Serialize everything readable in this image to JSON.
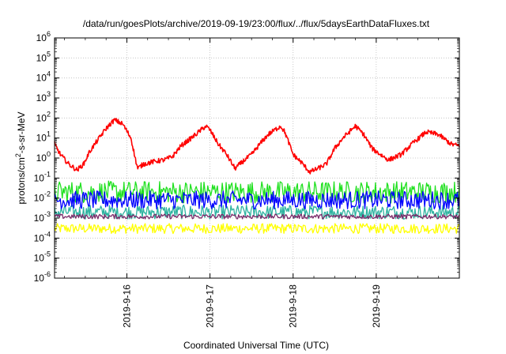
{
  "chart_data": {
    "type": "line",
    "title": "/data/run/goesPlots/archive/2019-09-19/23:00/flux/../flux/5daysEarthDataFluxes.txt",
    "xlabel": "Coordinated Universal Time (UTC)",
    "ylabel": {
      "base": "protons/cm",
      "sup": "2",
      "rest": "-s-sr-MeV"
    },
    "yscale": "log",
    "ylim_exp": [
      -6,
      6
    ],
    "y_tick_exponents": [
      -6,
      -5,
      -4,
      -3,
      -2,
      -1,
      0,
      1,
      2,
      3,
      4,
      5,
      6
    ],
    "y_tick_base": "10",
    "x_unit": "day",
    "xlim": [
      "2019-09-15T03:00",
      "2019-09-20T00:00"
    ],
    "x_ticks": [
      {
        "day_offset": 1,
        "label": "2019-9-16"
      },
      {
        "day_offset": 2,
        "label": "2019-9-17"
      },
      {
        "day_offset": 3,
        "label": "2019-9-18"
      },
      {
        "day_offset": 4,
        "label": "2019-9-19"
      }
    ],
    "x_start_day_offset": 0.13,
    "x_end_day_offset": 5.0,
    "grid": true,
    "legend": "none",
    "series": [
      {
        "color": "#ffff00",
        "description_keypoints": [
          [
            0.13,
            0.0003
          ],
          [
            5.0,
            0.0003
          ]
        ],
        "noise_log_amp": 0.25
      },
      {
        "color": "#2db3a0",
        "description_keypoints": [
          [
            0.13,
            0.002
          ],
          [
            5.0,
            0.002
          ]
        ],
        "noise_log_amp": 0.35
      },
      {
        "color": "#1fe01f",
        "description_keypoints": [
          [
            0.13,
            0.02
          ],
          [
            5.0,
            0.02
          ]
        ],
        "noise_log_amp": 0.55
      },
      {
        "color": "#0000ff",
        "description_keypoints": [
          [
            0.13,
            0.008
          ],
          [
            5.0,
            0.008
          ]
        ],
        "noise_log_amp": 0.45
      },
      {
        "color": "#7a2a6a",
        "description_keypoints": [
          [
            0.13,
            0.0012
          ],
          [
            5.0,
            0.0012
          ]
        ],
        "noise_log_amp": 0.12
      },
      {
        "color": "#ff0000",
        "description_keypoints": [
          [
            0.13,
            5
          ],
          [
            0.2,
            1.5
          ],
          [
            0.3,
            0.5
          ],
          [
            0.4,
            0.25
          ],
          [
            0.48,
            0.5
          ],
          [
            0.55,
            2
          ],
          [
            0.65,
            8
          ],
          [
            0.75,
            30
          ],
          [
            0.85,
            80
          ],
          [
            0.95,
            50
          ],
          [
            1.05,
            10
          ],
          [
            1.1,
            1
          ],
          [
            1.13,
            0.3
          ],
          [
            1.2,
            0.5
          ],
          [
            1.35,
            0.7
          ],
          [
            1.45,
            0.8
          ],
          [
            1.55,
            1.2
          ],
          [
            1.65,
            4
          ],
          [
            1.8,
            12
          ],
          [
            1.95,
            40
          ],
          [
            2.0,
            25
          ],
          [
            2.1,
            5
          ],
          [
            2.2,
            1.5
          ],
          [
            2.3,
            0.3
          ],
          [
            2.4,
            0.7
          ],
          [
            2.5,
            1.5
          ],
          [
            2.6,
            5
          ],
          [
            2.7,
            15
          ],
          [
            2.85,
            40
          ],
          [
            2.9,
            20
          ],
          [
            3.0,
            1.5
          ],
          [
            3.1,
            0.6
          ],
          [
            3.2,
            0.2
          ],
          [
            3.3,
            0.3
          ],
          [
            3.4,
            0.5
          ],
          [
            3.5,
            3
          ],
          [
            3.6,
            10
          ],
          [
            3.75,
            40
          ],
          [
            3.85,
            15
          ],
          [
            3.95,
            3
          ],
          [
            4.05,
            1.5
          ],
          [
            4.15,
            0.8
          ],
          [
            4.3,
            1.5
          ],
          [
            4.45,
            6
          ],
          [
            4.6,
            20
          ],
          [
            4.75,
            15
          ],
          [
            4.9,
            5
          ],
          [
            5.0,
            4
          ]
        ],
        "noise_log_amp": 0.12
      }
    ]
  }
}
